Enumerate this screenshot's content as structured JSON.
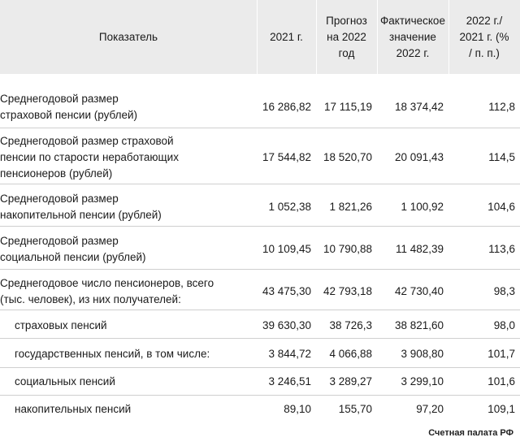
{
  "header": {
    "indicator": "Показатель",
    "y2021": "2021 г.",
    "forecast_l1": "Прогноз",
    "forecast_l2": "на 2022",
    "forecast_l3": "год",
    "actual_l1": "Фактическое",
    "actual_l2": "значение",
    "actual_l3": "2022 г.",
    "ratio_l1": "2022 г./",
    "ratio_l2": "2021 г. (%",
    "ratio_l3": "/ п. п.)"
  },
  "rows": [
    {
      "l1": "Среднегодовой размер",
      "l2": "страховой пенсии (рублей)",
      "l3": "",
      "v2021": "16 286,82",
      "forecast": "17 115,19",
      "actual": "18 374,42",
      "ratio": "112,8"
    },
    {
      "l1": "Среднегодовой размер страховой",
      "l2": "пенсии по старости неработающих",
      "l3": "пенсионеров (рублей)",
      "v2021": "17 544,82",
      "forecast": "18 520,70",
      "actual": "20 091,43",
      "ratio": "114,5"
    },
    {
      "l1": "Среднегодовой размер",
      "l2": "накопительной пенсии (рублей)",
      "l3": "",
      "v2021": "1 052,38",
      "forecast": "1 821,26",
      "actual": "1 100,92",
      "ratio": "104,6"
    },
    {
      "l1": "Среднегодовой размер",
      "l2": "социальной пенсии (рублей)",
      "l3": "",
      "v2021": "10 109,45",
      "forecast": "10 790,88",
      "actual": "11 482,39",
      "ratio": "113,6"
    },
    {
      "l1": "Среднегодовое число пенсионеров, всего",
      "l2": "(тыс. человек), из них получателей:",
      "l3": "",
      "v2021": "43 475,30",
      "forecast": "42 793,18",
      "actual": "42 730,40",
      "ratio": "98,3"
    },
    {
      "l1": "страховых пенсий",
      "v2021": "39 630,30",
      "forecast": "38 726,3",
      "actual": "38 821,60",
      "ratio": "98,0"
    },
    {
      "l1": "государственных пенсий, в том числе:",
      "v2021": "3 844,72",
      "forecast": "4 066,88",
      "actual": "3 908,80",
      "ratio": "101,7"
    },
    {
      "l1": "социальных пенсий",
      "v2021": "3 246,51",
      "forecast": "3 289,27",
      "actual": "3 299,10",
      "ratio": "101,6"
    },
    {
      "l1": "накопительных пенсий",
      "v2021": "89,10",
      "forecast": "155,70",
      "actual": "97,20",
      "ratio": "109,1"
    }
  ],
  "footer": "Счетная палата РФ"
}
